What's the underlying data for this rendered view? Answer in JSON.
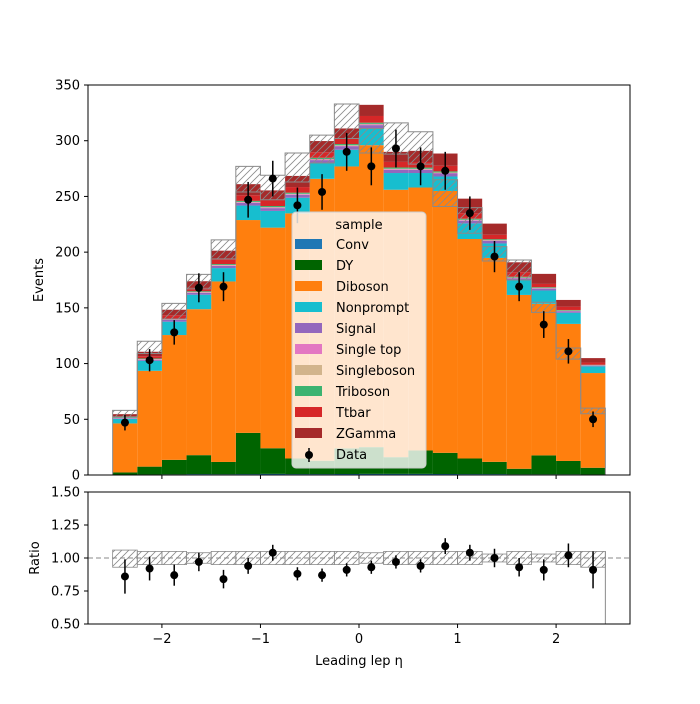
{
  "chart_data": {
    "type": "bar",
    "stacked": true,
    "x_edges": [
      -2.5,
      -2.25,
      -2.0,
      -1.75,
      -1.5,
      -1.25,
      -1.0,
      -0.75,
      -0.5,
      -0.25,
      0.0,
      0.25,
      0.5,
      0.75,
      1.0,
      1.25,
      1.5,
      1.75,
      2.0,
      2.25,
      2.5
    ],
    "xlabel": "Leading lep η",
    "xlim": [
      -2.75,
      2.75
    ],
    "x_ticks": [
      -2,
      -1,
      0,
      1,
      2
    ],
    "x_tick_labels": [
      "−2",
      "−1",
      "0",
      "1",
      "2"
    ],
    "main": {
      "ylabel": "Events",
      "ylim": [
        0,
        350
      ],
      "y_ticks": [
        0,
        50,
        100,
        150,
        200,
        250,
        300,
        350
      ],
      "series": [
        {
          "name": "Conv",
          "color": "#1f77b4",
          "values": [
            0.3,
            0.5,
            0.6,
            0.8,
            0.7,
            0.8,
            1.0,
            0.8,
            0.8,
            0.9,
            1.0,
            1.0,
            1.0,
            0.9,
            0.8,
            0.8,
            0.6,
            0.6,
            0.6,
            0.5
          ]
        },
        {
          "name": "DY",
          "color": "#006400",
          "values": [
            2,
            7,
            13,
            17,
            11,
            37,
            23,
            14,
            12,
            23,
            24,
            15,
            21,
            19,
            14,
            11,
            5,
            17,
            12,
            6
          ]
        },
        {
          "name": "Diboson",
          "color": "#ff7f0e",
          "values": [
            44,
            86,
            112,
            131,
            162,
            191,
            198,
            220,
            253,
            253,
            271,
            240,
            236,
            235,
            197,
            183,
            156,
            136,
            123,
            85
          ]
        },
        {
          "name": "Nonprompt",
          "color": "#17becf",
          "values": [
            4,
            9,
            12,
            13,
            12,
            13,
            15,
            14,
            14,
            15,
            15,
            15,
            13,
            13,
            14,
            13,
            13,
            12,
            10,
            6
          ]
        },
        {
          "name": "Signal",
          "color": "#9467bd",
          "values": [
            0.6,
            1.0,
            1.5,
            1.7,
            2.0,
            2.4,
            2.5,
            2.7,
            2.8,
            2.9,
            3.0,
            2.9,
            2.8,
            2.7,
            2.4,
            2.2,
            1.9,
            1.7,
            1.4,
            0.7
          ]
        },
        {
          "name": "Single top",
          "color": "#e377c2",
          "values": [
            0.2,
            0.3,
            0.3,
            0.4,
            0.4,
            0.5,
            0.5,
            0.5,
            0.6,
            0.6,
            0.6,
            0.6,
            0.6,
            0.5,
            0.5,
            0.4,
            0.4,
            0.3,
            0.3,
            0.2
          ]
        },
        {
          "name": "Singleboson",
          "color": "#d2b48c",
          "values": [
            0.2,
            0.3,
            0.3,
            0.3,
            0.4,
            0.4,
            0.4,
            0.4,
            0.4,
            0.5,
            0.5,
            0.4,
            0.4,
            0.4,
            0.4,
            0.4,
            0.3,
            0.3,
            0.3,
            0.2
          ]
        },
        {
          "name": "Triboson",
          "color": "#3cb371",
          "values": [
            0.3,
            0.5,
            0.6,
            0.7,
            0.8,
            0.9,
            1.0,
            1.0,
            1.1,
            1.1,
            1.1,
            1.1,
            1.1,
            1.0,
            0.9,
            0.8,
            0.7,
            0.6,
            0.5,
            0.3
          ]
        },
        {
          "name": "Ttbar",
          "color": "#d62728",
          "values": [
            1,
            2,
            3,
            3,
            4,
            5,
            5,
            5,
            5,
            5,
            6,
            5,
            5,
            5,
            5,
            4,
            4,
            3,
            3,
            2
          ]
        },
        {
          "name": "ZGamma",
          "color": "#a52a2a",
          "values": [
            2,
            4,
            5,
            6,
            8,
            10,
            9,
            10,
            10,
            9,
            10,
            9,
            10,
            11,
            13,
            10,
            9,
            9,
            6,
            4
          ]
        }
      ],
      "uncertainty": {
        "upper": [
          58,
          120,
          154,
          180,
          211,
          277,
          269,
          289,
          305,
          333,
          311,
          316,
          308,
          265,
          240,
          205,
          193,
          155,
          114,
          60
        ],
        "lower": [
          52,
          109,
          140,
          167,
          194,
          254,
          247,
          263,
          280,
          302,
          289,
          288,
          279,
          241,
          217,
          192,
          175,
          146,
          104,
          55
        ]
      },
      "data": {
        "name": "Data",
        "x": [
          -2.375,
          -2.125,
          -1.875,
          -1.625,
          -1.375,
          -1.125,
          -0.875,
          -0.625,
          -0.375,
          -0.125,
          0.125,
          0.375,
          0.625,
          0.875,
          1.125,
          1.375,
          1.625,
          1.875,
          2.125,
          2.375
        ],
        "values": [
          47,
          103,
          128,
          168,
          169,
          247,
          266,
          242,
          254,
          290,
          277,
          293,
          277,
          273,
          235,
          196,
          169,
          135,
          111,
          50
        ],
        "errors": [
          7,
          10,
          11,
          13,
          13,
          16,
          16,
          16,
          16,
          17,
          17,
          17,
          17,
          17,
          15,
          14,
          13,
          12,
          11,
          7
        ]
      }
    },
    "ratio": {
      "ylabel": "Ratio",
      "ylim": [
        0.5,
        1.5
      ],
      "y_ticks": [
        0.5,
        0.75,
        1.0,
        1.25,
        1.5
      ],
      "y_tick_labels": [
        "0.50",
        "0.75",
        "1.00",
        "1.25",
        "1.50"
      ],
      "reference_line": 1.0,
      "band_upper": [
        1.06,
        1.05,
        1.05,
        1.04,
        1.05,
        1.05,
        1.05,
        1.05,
        1.05,
        1.05,
        1.04,
        1.05,
        1.05,
        1.05,
        1.05,
        1.03,
        1.05,
        1.03,
        1.05,
        1.05
      ],
      "band_lower": [
        0.93,
        0.95,
        0.95,
        0.96,
        0.95,
        0.95,
        0.95,
        0.95,
        0.95,
        0.95,
        0.96,
        0.95,
        0.95,
        0.95,
        0.95,
        0.97,
        0.95,
        0.97,
        0.95,
        0.93
      ],
      "values": [
        0.86,
        0.92,
        0.87,
        0.97,
        0.84,
        0.94,
        1.04,
        0.88,
        0.87,
        0.91,
        0.93,
        0.97,
        0.94,
        1.09,
        1.04,
        1.0,
        0.93,
        0.91,
        1.02,
        0.91
      ],
      "errors": [
        0.13,
        0.09,
        0.08,
        0.07,
        0.07,
        0.06,
        0.06,
        0.05,
        0.05,
        0.05,
        0.05,
        0.05,
        0.05,
        0.06,
        0.06,
        0.07,
        0.07,
        0.08,
        0.09,
        0.14
      ]
    },
    "legend": {
      "title": "sample",
      "placement": "center",
      "entries": [
        "Conv",
        "DY",
        "Diboson",
        "Nonprompt",
        "Signal",
        "Single top",
        "Singleboson",
        "Triboson",
        "Ttbar",
        "ZGamma",
        "Data"
      ]
    }
  }
}
